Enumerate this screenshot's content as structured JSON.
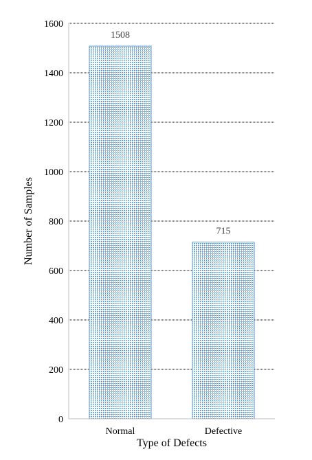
{
  "chart_data": {
    "type": "bar",
    "title": "",
    "xlabel": "Type of Defects",
    "ylabel": "Number of Samples",
    "categories": [
      "Normal",
      "Defective"
    ],
    "values": [
      1508,
      715
    ],
    "data_labels": [
      "1508",
      "715"
    ],
    "ylim": [
      0,
      1600
    ],
    "yticks": [
      0,
      200,
      400,
      600,
      800,
      1000,
      1200,
      1400,
      1600
    ],
    "grid": true,
    "grid_style": "dotted",
    "legend": "none",
    "bar_color": "#5b9bd5",
    "bar_fill": "dotted-crosshatch"
  }
}
